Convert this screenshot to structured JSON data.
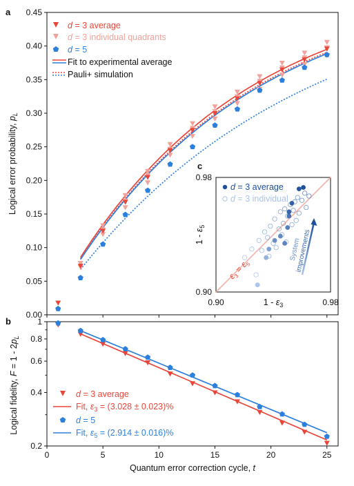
{
  "colors": {
    "d3": "#e8463a",
    "d3_individual": "#f1a29a",
    "d5": "#2d7fdc",
    "inset_line": "#f2b2a6",
    "arrow_start": "#a9c4ee",
    "arrow_end": "#1d4f9a"
  },
  "chart_data": [
    {
      "panel_label": "a",
      "type": "scatter",
      "ylabel": "Logical error probability, p_L",
      "ylim": [
        0,
        0.45
      ],
      "xlim": [
        0,
        26
      ],
      "yticks": [
        "0.00",
        "0.05",
        "0.10",
        "0.15",
        "0.20",
        "0.25",
        "0.30",
        "0.35",
        "0.40",
        "0.45"
      ],
      "legend": [
        "d = 3 average",
        "d = 3 individual quadrants",
        "d = 5",
        "Fit to experimental average",
        "Pauli+ simulation"
      ],
      "series": [
        {
          "name": "d = 3 average",
          "marker": "triangle-down",
          "x": [
            1,
            3,
            5,
            7,
            9,
            11,
            13,
            15,
            17,
            19,
            21,
            23,
            25
          ],
          "y": [
            0.018,
            0.073,
            0.125,
            0.168,
            0.205,
            0.245,
            0.275,
            0.3,
            0.322,
            0.345,
            0.365,
            0.38,
            0.396
          ]
        },
        {
          "name": "d = 3 individual quadrants",
          "marker": "triangle-down",
          "x": [
            3,
            3,
            5,
            5,
            5,
            7,
            7,
            7,
            9,
            9,
            9,
            11,
            11,
            11,
            13,
            13,
            13,
            15,
            15,
            15,
            17,
            17,
            17,
            19,
            19,
            19,
            21,
            21,
            21,
            23,
            23,
            23,
            25,
            25,
            25
          ],
          "y": [
            0.071,
            0.077,
            0.12,
            0.127,
            0.133,
            0.16,
            0.17,
            0.178,
            0.197,
            0.208,
            0.214,
            0.238,
            0.247,
            0.254,
            0.266,
            0.278,
            0.285,
            0.292,
            0.303,
            0.31,
            0.315,
            0.325,
            0.332,
            0.336,
            0.348,
            0.355,
            0.357,
            0.368,
            0.375,
            0.373,
            0.383,
            0.39,
            0.386,
            0.398,
            0.406
          ]
        },
        {
          "name": "d = 5",
          "marker": "pentagon",
          "x": [
            1,
            3,
            5,
            7,
            9,
            11,
            13,
            15,
            17,
            19,
            21,
            23,
            25
          ],
          "y": [
            0.009,
            0.055,
            0.105,
            0.149,
            0.185,
            0.224,
            0.25,
            0.282,
            0.306,
            0.334,
            0.349,
            0.368,
            0.387
          ]
        }
      ],
      "fits": [
        {
          "series": "d = 3 average",
          "kind": "fit",
          "epsilon": 0.03028
        },
        {
          "series": "d = 5",
          "kind": "fit",
          "epsilon": 0.02914
        },
        {
          "series": "d = 3",
          "kind": "simulation",
          "epsilon": 0.0295
        },
        {
          "series": "d = 5",
          "kind": "simulation",
          "epsilon": 0.0236
        }
      ]
    },
    {
      "panel_label": "b",
      "type": "scatter",
      "scale": "log",
      "xlabel": "Quantum error correction cycle, t",
      "ylabel": "Logical fidelity, F = 1 - 2p_L",
      "xlim": [
        0,
        26
      ],
      "ylim": [
        0.2,
        1.0
      ],
      "xticks": [
        "0",
        "5",
        "10",
        "15",
        "20",
        "25"
      ],
      "yticks": [
        "0.2",
        "0.4",
        "0.6",
        "0.8",
        "1"
      ],
      "legend": [
        "d = 3 average",
        "Fit, ε3 = (3.028 ± 0.023)%",
        "d = 5",
        "Fit, ε5 = (2.914 ± 0.016)%"
      ],
      "series": [
        {
          "name": "d = 3 average",
          "marker": "triangle-down",
          "x": [
            1,
            3,
            5,
            7,
            9,
            11,
            13,
            15,
            17,
            19,
            21,
            23,
            25
          ],
          "y": [
            0.964,
            0.854,
            0.75,
            0.664,
            0.59,
            0.51,
            0.45,
            0.4,
            0.356,
            0.31,
            0.27,
            0.24,
            0.208
          ]
        },
        {
          "name": "d = 5",
          "marker": "pentagon",
          "x": [
            1,
            3,
            5,
            7,
            9,
            11,
            13,
            15,
            17,
            19,
            21,
            23,
            25
          ],
          "y": [
            0.982,
            0.89,
            0.79,
            0.702,
            0.63,
            0.552,
            0.5,
            0.436,
            0.388,
            0.332,
            0.302,
            0.264,
            0.226
          ]
        }
      ],
      "fits": [
        {
          "series": "d = 3 average",
          "epsilon": 0.03028,
          "t0": 3,
          "F0": 0.854
        },
        {
          "series": "d = 5",
          "epsilon": 0.02914,
          "t0": 3,
          "F0": 0.89
        }
      ]
    },
    {
      "panel_label": "c",
      "type": "scatter",
      "xlabel": "1 - ε3",
      "ylabel": "1 - ε5",
      "xlim": [
        0.9,
        0.98
      ],
      "ylim": [
        0.9,
        0.98
      ],
      "xticks": [
        "0.90",
        "0.98"
      ],
      "yticks": [
        "0.90",
        "0.98"
      ],
      "diagonal_label": "ε3 = ε5",
      "arrow_label": [
        "System",
        "improvements"
      ],
      "legend": [
        "d = 3 average",
        "d = 3 individual"
      ],
      "series": [
        {
          "name": "d = 3 average",
          "marker": "filled-circle",
          "x": [
            0.929,
            0.935,
            0.937,
            0.941,
            0.945,
            0.948,
            0.95,
            0.951,
            0.951,
            0.953,
            0.958,
            0.961
          ],
          "y": [
            0.905,
            0.924,
            0.93,
            0.936,
            0.939,
            0.934,
            0.945,
            0.953,
            0.956,
            0.962,
            0.972,
            0.973
          ],
          "shade": [
            0.0,
            0.15,
            0.3,
            0.45,
            0.5,
            0.55,
            0.6,
            0.7,
            0.8,
            0.85,
            0.95,
            1.0
          ]
        },
        {
          "name": "d = 3 individual",
          "marker": "open-circle",
          "x": [
            0.92,
            0.925,
            0.928,
            0.93,
            0.932,
            0.934,
            0.936,
            0.937,
            0.938,
            0.94,
            0.941,
            0.942,
            0.944,
            0.945,
            0.946,
            0.947,
            0.948,
            0.949,
            0.95,
            0.952,
            0.953,
            0.954,
            0.955,
            0.956,
            0.957,
            0.958,
            0.96,
            0.962,
            0.963,
            0.965
          ],
          "y": [
            0.924,
            0.93,
            0.912,
            0.936,
            0.929,
            0.942,
            0.938,
            0.925,
            0.946,
            0.934,
            0.951,
            0.931,
            0.944,
            0.956,
            0.94,
            0.948,
            0.958,
            0.935,
            0.953,
            0.961,
            0.947,
            0.957,
            0.963,
            0.95,
            0.966,
            0.955,
            0.964,
            0.969,
            0.959,
            0.967
          ],
          "shade": [
            0.1,
            0.2,
            0.15,
            0.3,
            0.25,
            0.35,
            0.4,
            0.3,
            0.45,
            0.4,
            0.5,
            0.35,
            0.5,
            0.6,
            0.45,
            0.55,
            0.65,
            0.4,
            0.6,
            0.7,
            0.55,
            0.7,
            0.75,
            0.6,
            0.8,
            0.7,
            0.85,
            0.9,
            0.75,
            0.95
          ]
        }
      ]
    }
  ]
}
